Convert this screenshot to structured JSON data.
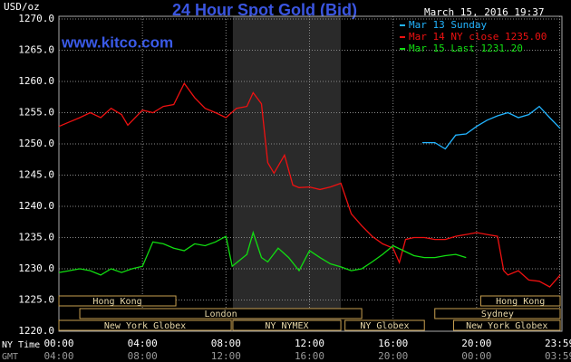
{
  "chart_data": {
    "type": "line",
    "title": "24 Hour Spot Gold (Bid)",
    "source": "www.kitco.com",
    "timestamp": "March 15, 2016 19:37",
    "y_axis_label": "USD/oz",
    "x_axis_label": "NY Time",
    "x2_axis_label": "GMT",
    "xlim": [
      0,
      24
    ],
    "xticks": [
      {
        "value": 0,
        "label": "00:00"
      },
      {
        "value": 4,
        "label": "04:00"
      },
      {
        "value": 8,
        "label": "08:00"
      },
      {
        "value": 12,
        "label": "12:00"
      },
      {
        "value": 16,
        "label": "16:00"
      },
      {
        "value": 20,
        "label": "20:00"
      },
      {
        "value": 23.98,
        "label": "23:59"
      }
    ],
    "x2_tick_labels": [
      "04:00",
      "08:00",
      "12:00",
      "16:00",
      "20:00",
      "00:00",
      "03:59"
    ],
    "ylim": [
      1220,
      1270
    ],
    "yticks": [
      {
        "value": 1220,
        "label": "1220.0"
      },
      {
        "value": 1225,
        "label": "1225.0"
      },
      {
        "value": 1230,
        "label": "1230.0"
      },
      {
        "value": 1235,
        "label": "1235.0"
      },
      {
        "value": 1240,
        "label": "1240.0"
      },
      {
        "value": 1245,
        "label": "1245.0"
      },
      {
        "value": 1250,
        "label": "1250.0"
      },
      {
        "value": 1255,
        "label": "1255.0"
      },
      {
        "value": 1260,
        "label": "1260.0"
      },
      {
        "value": 1265,
        "label": "1265.0"
      },
      {
        "value": 1270,
        "label": "1270.0"
      }
    ],
    "grid": true,
    "series": [
      {
        "name": "Mar 13 Sunday",
        "color": "#22b4ff",
        "x": [
          17.4,
          18,
          18.5,
          19,
          19.5,
          20,
          20.5,
          21,
          21.5,
          22,
          22.5,
          23,
          23.5,
          24
        ],
        "values": [
          1250.2,
          1250.2,
          1249.2,
          1251.4,
          1251.6,
          1252.8,
          1253.8,
          1254.5,
          1255,
          1254.2,
          1254.7,
          1256,
          1254.2,
          1252.5
        ]
      },
      {
        "name": "Mar 14 NY close 1235.00",
        "color": "#ee1111",
        "x": [
          0,
          0.5,
          1,
          1.5,
          2,
          2.5,
          3,
          3.3,
          4,
          4.5,
          5,
          5.5,
          6,
          6.5,
          7,
          7.5,
          8,
          8.5,
          9,
          9.3,
          9.7,
          10,
          10.3,
          10.8,
          11.2,
          11.5,
          12,
          12.5,
          13,
          13.5,
          14,
          14.5,
          15,
          15.5,
          16,
          16.3,
          16.6,
          17,
          17.5,
          18,
          18.5,
          19,
          19.5,
          20,
          20.5,
          21,
          21.3,
          21.5,
          22,
          22.5,
          23,
          23.5,
          24
        ],
        "values": [
          1252.8,
          1253.5,
          1254.2,
          1255,
          1254.2,
          1255.7,
          1254.7,
          1253,
          1255.4,
          1255,
          1256,
          1256.3,
          1259.7,
          1257.4,
          1255.7,
          1255,
          1254.2,
          1255.7,
          1256,
          1258.2,
          1256.4,
          1247,
          1245.3,
          1248.2,
          1243.4,
          1243,
          1243.1,
          1242.7,
          1243.1,
          1243.7,
          1238.8,
          1236.9,
          1235.2,
          1234,
          1233.3,
          1231,
          1234.7,
          1235,
          1235,
          1234.7,
          1234.7,
          1235.2,
          1235.5,
          1235.8,
          1235.5,
          1235.2,
          1229.7,
          1229,
          1229.7,
          1228.2,
          1228,
          1227.1,
          1229
        ]
      },
      {
        "name": "Mar 15 Last 1231.20",
        "color": "#11dd11",
        "x": [
          0,
          0.5,
          1,
          1.5,
          2,
          2.5,
          3,
          3.5,
          4,
          4.5,
          5,
          5.5,
          6,
          6.5,
          7,
          7.5,
          8,
          8.3,
          9,
          9.3,
          9.7,
          10,
          10.5,
          11,
          11.5,
          12,
          12.5,
          13,
          13.5,
          14,
          14.5,
          15,
          15.5,
          16,
          16.5,
          17,
          17.5,
          18,
          18.5,
          19,
          19.5
        ],
        "values": [
          1229.4,
          1229.7,
          1230,
          1229.7,
          1229,
          1230,
          1229.4,
          1230,
          1230.4,
          1234.3,
          1234,
          1233.3,
          1232.9,
          1234,
          1233.7,
          1234.3,
          1235.2,
          1230.4,
          1232.3,
          1235.8,
          1231.8,
          1231.1,
          1233.3,
          1231.8,
          1229.7,
          1232.9,
          1231.8,
          1230.8,
          1230.3,
          1229.7,
          1230,
          1231.1,
          1232.3,
          1233.7,
          1232.9,
          1232.1,
          1231.8,
          1231.8,
          1232.1,
          1232.3,
          1231.8
        ]
      }
    ],
    "sessions": [
      {
        "label": "Hong Kong",
        "start": 0,
        "end": 5.6,
        "row": 0
      },
      {
        "label": "Hong Kong",
        "start": 20.2,
        "end": 24,
        "row": 0
      },
      {
        "label": "London",
        "start": 1,
        "end": 14.5,
        "row": 1
      },
      {
        "label": "Sydney",
        "start": 18,
        "end": 24,
        "row": 1
      },
      {
        "label": "New York Globex",
        "start": 0,
        "end": 8.25,
        "row": 2
      },
      {
        "label": "NY NYMEX",
        "start": 8.33,
        "end": 13.5,
        "row": 2,
        "shaded": true
      },
      {
        "label": "NY Globex",
        "start": 13.7,
        "end": 17.5,
        "row": 2
      },
      {
        "label": "New York Globex",
        "start": 18.9,
        "end": 24,
        "row": 2
      }
    ]
  }
}
